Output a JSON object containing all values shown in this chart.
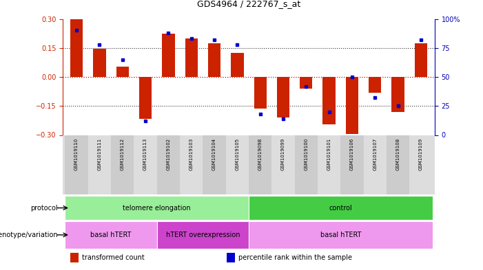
{
  "title": "GDS4964 / 222767_s_at",
  "samples": [
    "GSM1019110",
    "GSM1019111",
    "GSM1019112",
    "GSM1019113",
    "GSM1019102",
    "GSM1019103",
    "GSM1019104",
    "GSM1019105",
    "GSM1019098",
    "GSM1019099",
    "GSM1019100",
    "GSM1019101",
    "GSM1019106",
    "GSM1019107",
    "GSM1019108",
    "GSM1019109"
  ],
  "transformed_count": [
    0.3,
    0.145,
    0.055,
    -0.215,
    0.225,
    0.2,
    0.175,
    0.125,
    -0.165,
    -0.21,
    -0.06,
    -0.245,
    -0.295,
    -0.08,
    -0.18,
    0.175
  ],
  "percentile_rank": [
    90,
    78,
    65,
    12,
    88,
    83,
    82,
    78,
    18,
    14,
    42,
    20,
    50,
    32,
    25,
    82
  ],
  "ylim_left": [
    -0.3,
    0.3
  ],
  "ylim_right": [
    0,
    100
  ],
  "yticks_left": [
    -0.3,
    -0.15,
    0,
    0.15,
    0.3
  ],
  "yticks_right": [
    0,
    25,
    50,
    75,
    100
  ],
  "bar_color": "#cc2200",
  "dot_color": "#0000cc",
  "zero_line_color": "#cc0000",
  "grid_line_color": "#333333",
  "protocol_groups": [
    {
      "label": "telomere elongation",
      "start": 0,
      "end": 7,
      "color": "#99ee99"
    },
    {
      "label": "control",
      "start": 8,
      "end": 15,
      "color": "#44cc44"
    }
  ],
  "genotype_groups": [
    {
      "label": "basal hTERT",
      "start": 0,
      "end": 3,
      "color": "#ee99ee"
    },
    {
      "label": "hTERT overexpression",
      "start": 4,
      "end": 7,
      "color": "#cc44cc"
    },
    {
      "label": "basal hTERT",
      "start": 8,
      "end": 15,
      "color": "#ee99ee"
    }
  ],
  "legend_items": [
    {
      "label": "transformed count",
      "color": "#cc2200"
    },
    {
      "label": "percentile rank within the sample",
      "color": "#0000cc"
    }
  ],
  "bg_color": "#ffffff",
  "left_axis_color": "#cc2200",
  "right_axis_color": "#0000bb",
  "bar_width": 0.55,
  "n_samples": 16
}
